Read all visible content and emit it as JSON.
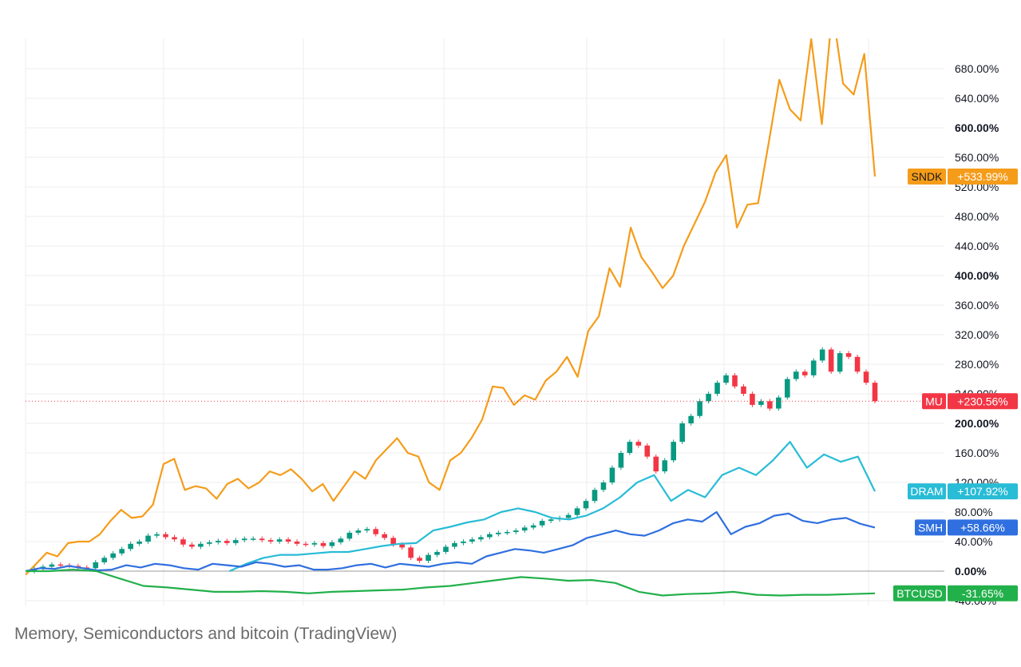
{
  "caption": "Memory, Semiconductors and bitcoin (TradingView)",
  "chart_data": {
    "type": "line",
    "y_unit": "%",
    "ylim": [
      -42,
      700
    ],
    "y_ticks": [
      {
        "value": 680,
        "label": "680.00%",
        "bold": false
      },
      {
        "value": 640,
        "label": "640.00%",
        "bold": false
      },
      {
        "value": 600,
        "label": "600.00%",
        "bold": true
      },
      {
        "value": 560,
        "label": "560.00%",
        "bold": false
      },
      {
        "value": 520,
        "label": "520.00%",
        "bold": false
      },
      {
        "value": 480,
        "label": "480.00%",
        "bold": false
      },
      {
        "value": 440,
        "label": "440.00%",
        "bold": false
      },
      {
        "value": 400,
        "label": "400.00%",
        "bold": true
      },
      {
        "value": 360,
        "label": "360.00%",
        "bold": false
      },
      {
        "value": 320,
        "label": "320.00%",
        "bold": false
      },
      {
        "value": 280,
        "label": "280.00%",
        "bold": false
      },
      {
        "value": 240,
        "label": "240.00%",
        "bold": false
      },
      {
        "value": 200,
        "label": "200.00%",
        "bold": true
      },
      {
        "value": 160,
        "label": "160.00%",
        "bold": false
      },
      {
        "value": 120,
        "label": "120.00%",
        "bold": false
      },
      {
        "value": 80,
        "label": "80.00%",
        "bold": false
      },
      {
        "value": 40,
        "label": "40.00%",
        "bold": false
      },
      {
        "value": 0,
        "label": "0.00%",
        "bold": true
      },
      {
        "value": -40,
        "label": "-40.00%",
        "bold": false
      }
    ],
    "grid": true,
    "baseline_value": 0,
    "x_count": 63,
    "series": [
      {
        "name": "SNDK",
        "style": "line",
        "color": "#f59c1a",
        "last_label": "+533.99%",
        "values": [
          -5,
          10,
          25,
          20,
          38,
          40,
          40,
          50,
          68,
          83,
          72,
          74,
          90,
          145,
          152,
          110,
          115,
          112,
          98,
          118,
          125,
          112,
          120,
          135,
          130,
          138,
          125,
          108,
          118,
          95,
          115,
          135,
          125,
          150,
          165,
          180,
          160,
          155,
          120,
          110,
          150,
          160,
          180,
          205,
          250,
          248,
          225,
          238,
          232,
          258,
          270,
          290,
          263,
          325,
          345,
          410,
          385,
          465,
          425,
          405,
          383,
          400,
          440,
          470,
          500,
          540,
          563,
          465,
          496,
          498,
          580,
          665,
          625,
          610,
          720,
          605,
          760,
          660,
          645,
          700,
          534
        ]
      },
      {
        "name": "MU",
        "style": "candles",
        "color_up": "#089981",
        "color_down": "#f23645",
        "last_label": "+230.56%",
        "values": [
          0,
          3,
          6,
          9,
          8,
          7,
          5,
          4,
          12,
          18,
          24,
          30,
          37,
          40,
          48,
          50,
          46,
          43,
          36,
          33,
          37,
          39,
          41,
          38,
          42,
          44,
          44,
          42,
          40,
          43,
          40,
          37,
          36,
          38,
          34,
          39,
          44,
          52,
          55,
          57,
          50,
          45,
          36,
          32,
          18,
          14,
          22,
          26,
          33,
          38,
          40,
          43,
          46,
          50,
          52,
          53,
          55,
          59,
          62,
          68,
          70,
          72,
          76,
          85,
          95,
          110,
          120,
          140,
          160,
          175,
          170,
          155,
          135,
          150,
          175,
          200,
          210,
          230,
          240,
          255,
          265,
          250,
          240,
          225,
          230,
          220,
          235,
          260,
          270,
          265,
          285,
          300,
          270,
          295,
          290,
          270,
          255,
          230
        ]
      },
      {
        "name": "DRAM",
        "style": "line",
        "color": "#28bcd6",
        "last_label": "+107.92%",
        "start_index": 24,
        "values": [
          0,
          10,
          18,
          22,
          22,
          24,
          26,
          26,
          30,
          34,
          37,
          38,
          55,
          60,
          66,
          70,
          80,
          85,
          80,
          72,
          70,
          75,
          85,
          100,
          120,
          130,
          95,
          110,
          100,
          130,
          140,
          130,
          150,
          175,
          140,
          158,
          148,
          155,
          108
        ]
      },
      {
        "name": "SMH",
        "style": "line",
        "color": "#2f6fdf",
        "last_label": "+58.66%",
        "values": [
          0,
          4,
          3,
          7,
          4,
          1,
          2,
          8,
          5,
          10,
          8,
          4,
          2,
          10,
          8,
          6,
          12,
          10,
          6,
          8,
          2,
          2,
          4,
          8,
          10,
          5,
          10,
          8,
          6,
          10,
          12,
          10,
          20,
          25,
          30,
          28,
          25,
          30,
          35,
          45,
          50,
          55,
          50,
          48,
          55,
          65,
          70,
          67,
          80,
          50,
          60,
          65,
          75,
          78,
          68,
          65,
          70,
          72,
          64,
          59
        ]
      },
      {
        "name": "BTCUSD",
        "style": "line",
        "color": "#22b04b",
        "last_label": "-31.65%",
        "values": [
          0,
          0,
          2,
          0,
          -10,
          -20,
          -22,
          -25,
          -28,
          -28,
          -27,
          -28,
          -30,
          -28,
          -27,
          -26,
          -25,
          -22,
          -20,
          -16,
          -12,
          -8,
          -10,
          -13,
          -12,
          -16,
          -28,
          -33,
          -31,
          -30,
          -28,
          -32,
          -33,
          -32,
          -32,
          -31,
          -30
        ]
      }
    ]
  }
}
